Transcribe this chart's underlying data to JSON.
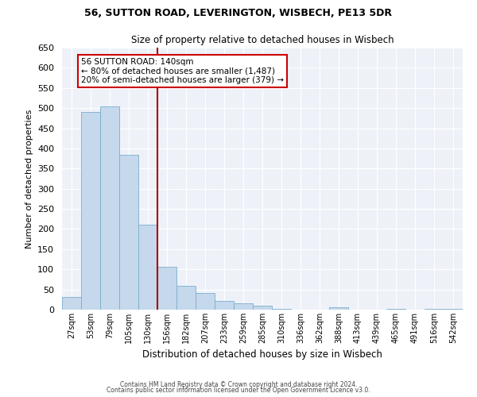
{
  "title1": "56, SUTTON ROAD, LEVERINGTON, WISBECH, PE13 5DR",
  "title2": "Size of property relative to detached houses in Wisbech",
  "xlabel": "Distribution of detached houses by size in Wisbech",
  "ylabel": "Number of detached properties",
  "bar_labels": [
    "27sqm",
    "53sqm",
    "79sqm",
    "105sqm",
    "130sqm",
    "156sqm",
    "182sqm",
    "207sqm",
    "233sqm",
    "259sqm",
    "285sqm",
    "310sqm",
    "336sqm",
    "362sqm",
    "388sqm",
    "413sqm",
    "439sqm",
    "465sqm",
    "491sqm",
    "516sqm",
    "542sqm"
  ],
  "bar_heights": [
    32,
    490,
    505,
    385,
    210,
    106,
    60,
    42,
    22,
    15,
    10,
    2,
    0,
    0,
    5,
    0,
    0,
    2,
    0,
    2,
    2
  ],
  "bar_color": "#c5d8ec",
  "bar_edge_color": "#7aaece",
  "vline_color": "#aa0000",
  "annotation_title": "56 SUTTON ROAD: 140sqm",
  "annotation_line1": "← 80% of detached houses are smaller (1,487)",
  "annotation_line2": "20% of semi-detached houses are larger (379) →",
  "annotation_box_color": "#cc0000",
  "ylim": [
    0,
    650
  ],
  "yticks": [
    0,
    50,
    100,
    150,
    200,
    250,
    300,
    350,
    400,
    450,
    500,
    550,
    600,
    650
  ],
  "background_color": "#eef2f8",
  "footer1": "Contains HM Land Registry data © Crown copyright and database right 2024.",
  "footer2": "Contains public sector information licensed under the Open Government Licence v3.0."
}
